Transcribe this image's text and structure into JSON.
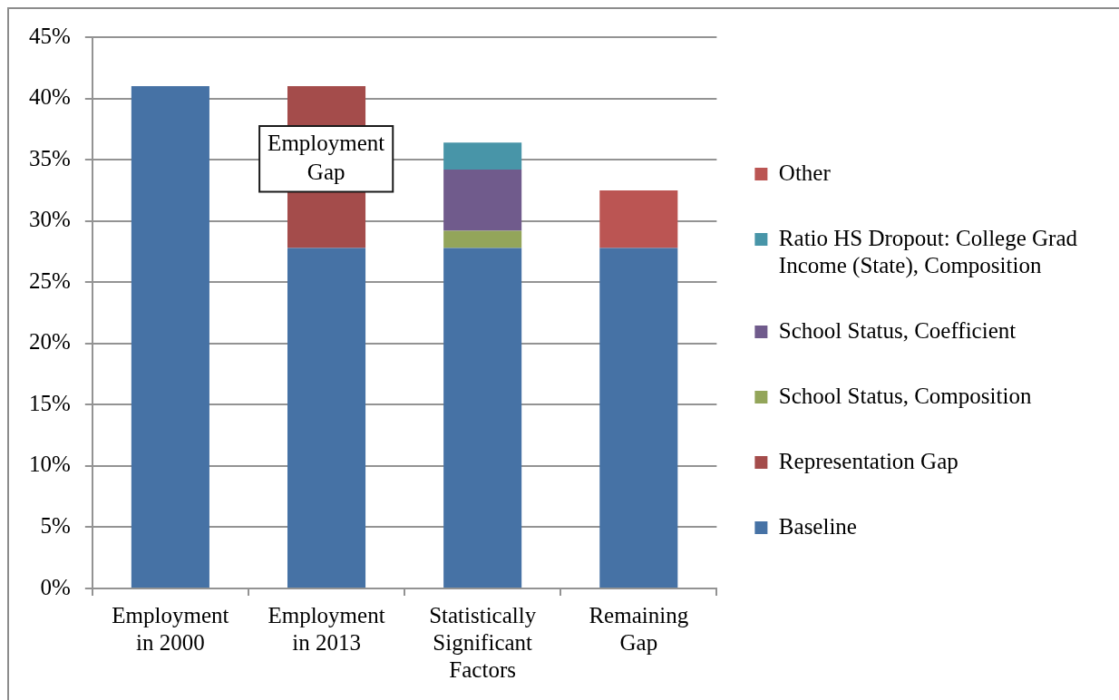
{
  "chart_data": {
    "type": "bar",
    "stacked": true,
    "categories": [
      "Employment in 2000",
      "Employment in 2013",
      "Statistically Significant Factors",
      "Remaining Gap"
    ],
    "series": [
      {
        "name": "Baseline",
        "color": "#4672a5",
        "values": [
          41,
          27.8,
          27.8,
          27.8
        ]
      },
      {
        "name": "Representation Gap",
        "color": "#a44c4b",
        "values": [
          null,
          13.2,
          null,
          null
        ]
      },
      {
        "name": "School Status, Composition",
        "color": "#93a55a",
        "values": [
          null,
          null,
          1.4,
          null
        ]
      },
      {
        "name": "School Status, Coefficient",
        "color": "#705b8c",
        "values": [
          null,
          null,
          5,
          null
        ]
      },
      {
        "name": "Ratio HS Dropout: College Grad Income (State), Composition",
        "color": "#4895a8",
        "values": [
          null,
          null,
          2.2,
          null
        ]
      },
      {
        "name": "Other",
        "color": "#bb5553",
        "values": [
          null,
          null,
          null,
          4.7
        ]
      }
    ],
    "ylim": [
      0,
      45
    ],
    "yticks": [
      {
        "value": 0,
        "label": "0%"
      },
      {
        "value": 5,
        "label": "5%"
      },
      {
        "value": 10,
        "label": "10%"
      },
      {
        "value": 15,
        "label": "15%"
      },
      {
        "value": 20,
        "label": "20%"
      },
      {
        "value": 25,
        "label": "25%"
      },
      {
        "value": 30,
        "label": "30%"
      },
      {
        "value": 35,
        "label": "35%"
      },
      {
        "value": 40,
        "label": "40%"
      },
      {
        "value": 45,
        "label": "45%"
      }
    ],
    "grid": "y",
    "legend": "right",
    "annotations": [
      "Employment Gap"
    ]
  }
}
